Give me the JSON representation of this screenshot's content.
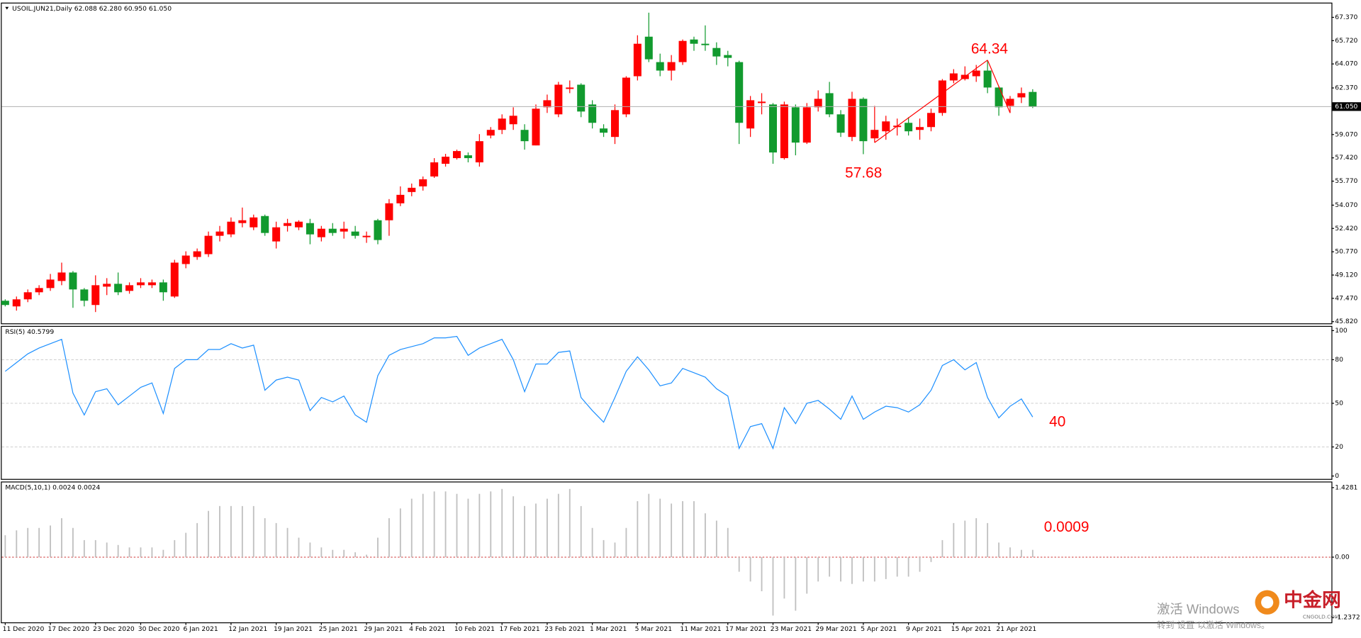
{
  "chart_data": [
    {
      "type": "candlestick",
      "title": "USOIL.JUN21,Daily  62.088 62.280 60.950 61.050",
      "up_color": "#ff0000",
      "down_color": "#119a2e",
      "categories": [
        "11 Dec 2020",
        null,
        null,
        null,
        "17 Dec 2020",
        null,
        null,
        null,
        "23 Dec 2020",
        null,
        null,
        null,
        "30 Dec 2020",
        null,
        null,
        null,
        "6 Jan 2021",
        null,
        null,
        null,
        "12 Jan 2021",
        null,
        null,
        null,
        "19 Jan 2021",
        null,
        null,
        null,
        "25 Jan 2021",
        null,
        null,
        null,
        "29 Jan 2021",
        null,
        null,
        null,
        "4 Feb 2021",
        null,
        null,
        null,
        "10 Feb 2021",
        null,
        null,
        null,
        "17 Feb 2021",
        null,
        null,
        null,
        "23 Feb 2021",
        null,
        null,
        null,
        "1 Mar 2021",
        null,
        null,
        null,
        "5 Mar 2021",
        null,
        null,
        null,
        "11 Mar 2021",
        null,
        null,
        null,
        "17 Mar 2021",
        null,
        null,
        null,
        "23 Mar 2021",
        null,
        null,
        null,
        "29 Mar 2021",
        null,
        null,
        null,
        "5 Apr 2021",
        null,
        null,
        null,
        "9 Apr 2021",
        null,
        null,
        null,
        "15 Apr 2021",
        null,
        null,
        null,
        "21 Apr 2021",
        null,
        null,
        null
      ],
      "open": [
        47.3,
        46.9,
        47.4,
        47.9,
        48.2,
        48.7,
        49.3,
        48.1,
        47.0,
        48.3,
        48.5,
        48.0,
        48.4,
        48.4,
        48.6,
        47.6,
        49.9,
        50.4,
        50.6,
        51.9,
        52.0,
        52.8,
        52.5,
        53.3,
        51.5,
        52.6,
        52.5,
        52.8,
        51.8,
        52.4,
        52.2,
        52.2,
        51.8,
        53.0,
        53.0,
        54.2,
        55.0,
        55.4,
        56.1,
        57.0,
        57.4,
        57.6,
        57.1,
        59.0,
        59.4,
        59.8,
        59.4,
        58.3,
        61.0,
        60.5,
        62.3,
        62.6,
        61.2,
        59.5,
        58.9,
        60.5,
        63.2,
        66.0,
        64.2,
        63.6,
        64.2,
        65.8,
        65.5,
        65.2,
        64.7,
        64.2,
        59.5,
        61.3,
        61.2,
        57.4,
        61.0,
        58.5,
        61.0,
        62.0,
        60.5,
        58.9,
        61.6,
        58.8,
        59.3,
        59.6,
        59.9,
        59.4,
        59.6,
        60.6,
        62.9,
        63.0,
        63.2,
        63.6,
        62.4,
        61.1,
        61.7,
        62.088
      ],
      "high": [
        47.4,
        47.6,
        48.1,
        48.4,
        49.2,
        50.0,
        49.4,
        48.2,
        49.1,
        48.9,
        49.3,
        48.6,
        48.9,
        48.8,
        48.8,
        50.2,
        50.8,
        51.0,
        52.2,
        52.6,
        53.2,
        53.9,
        53.4,
        53.4,
        52.9,
        53.1,
        53.0,
        53.1,
        52.6,
        52.8,
        52.9,
        52.6,
        52.2,
        53.1,
        54.5,
        55.4,
        55.6,
        56.1,
        57.4,
        57.7,
        58.0,
        57.8,
        59.1,
        59.6,
        60.5,
        61.0,
        59.8,
        61.2,
        61.9,
        62.8,
        62.9,
        62.7,
        61.5,
        59.8,
        61.2,
        63.2,
        66.1,
        67.7,
        64.8,
        64.7,
        65.8,
        66.0,
        66.8,
        65.6,
        65.0,
        64.3,
        61.8,
        62.0,
        61.3,
        61.4,
        61.2,
        61.3,
        62.2,
        62.8,
        60.8,
        62.1,
        61.7,
        61.1,
        60.4,
        60.2,
        60.3,
        60.2,
        60.9,
        63.0,
        63.7,
        63.9,
        64.0,
        64.34,
        62.5,
        61.8,
        62.4,
        62.28
      ],
      "low": [
        46.9,
        46.6,
        47.2,
        47.7,
        48.0,
        48.4,
        46.8,
        46.9,
        46.5,
        47.7,
        47.7,
        47.8,
        48.2,
        48.2,
        47.3,
        47.5,
        49.6,
        50.2,
        50.4,
        51.5,
        51.8,
        52.5,
        52.3,
        51.9,
        51.0,
        52.2,
        52.3,
        51.3,
        51.5,
        51.9,
        51.7,
        51.7,
        51.4,
        51.3,
        51.9,
        54.0,
        54.7,
        55.1,
        56.0,
        56.8,
        57.3,
        57.1,
        56.8,
        58.8,
        59.1,
        59.4,
        58.0,
        58.3,
        60.6,
        60.3,
        62.0,
        60.3,
        59.5,
        58.9,
        58.4,
        60.3,
        62.9,
        64.2,
        63.2,
        62.9,
        64.0,
        65.0,
        65.0,
        64.0,
        63.9,
        58.4,
        58.9,
        60.5,
        57.0,
        57.3,
        57.6,
        58.4,
        60.7,
        60.3,
        58.9,
        58.6,
        57.68,
        58.5,
        58.7,
        59.0,
        59.0,
        58.7,
        59.3,
        60.4,
        62.7,
        62.9,
        62.8,
        62.0,
        60.4,
        60.6,
        61.3,
        60.95
      ],
      "close": [
        47.0,
        47.4,
        47.9,
        48.2,
        48.8,
        49.3,
        48.1,
        47.3,
        48.4,
        48.5,
        47.9,
        48.4,
        48.6,
        48.6,
        47.9,
        50.0,
        50.5,
        50.8,
        51.9,
        52.2,
        52.9,
        53.0,
        53.2,
        52.1,
        52.5,
        52.8,
        52.9,
        52.0,
        52.4,
        52.1,
        52.4,
        51.9,
        51.9,
        51.6,
        54.2,
        54.8,
        55.3,
        55.9,
        57.1,
        57.5,
        57.9,
        57.4,
        58.6,
        59.4,
        60.2,
        60.4,
        58.6,
        60.9,
        61.5,
        62.6,
        62.4,
        60.7,
        59.9,
        59.2,
        60.8,
        63.1,
        65.5,
        64.4,
        63.6,
        64.2,
        65.7,
        65.5,
        65.4,
        64.6,
        64.5,
        59.9,
        61.5,
        61.4,
        57.8,
        61.2,
        58.5,
        61.0,
        61.6,
        60.5,
        59.2,
        61.6,
        58.6,
        59.4,
        60.0,
        59.7,
        59.3,
        59.6,
        60.6,
        62.9,
        63.4,
        63.3,
        63.6,
        62.4,
        61.0,
        61.6,
        62.0,
        61.05
      ],
      "ylim": [
        45.7,
        68.29
      ],
      "yticks": [
        {
          "value": 45.82,
          "label": "45.820"
        },
        {
          "value": 47.47,
          "label": "47.470"
        },
        {
          "value": 49.12,
          "label": "49.120"
        },
        {
          "value": 50.77,
          "label": "50.770"
        },
        {
          "value": 52.42,
          "label": "52.420"
        },
        {
          "value": 54.07,
          "label": "54.070"
        },
        {
          "value": 55.77,
          "label": "55.770"
        },
        {
          "value": 57.42,
          "label": "57.420"
        },
        {
          "value": 59.07,
          "label": "59.070"
        },
        {
          "value": 62.37,
          "label": "62.370"
        },
        {
          "value": 64.07,
          "label": "64.070"
        },
        {
          "value": 65.72,
          "label": "65.720"
        },
        {
          "value": 67.37,
          "label": "67.370"
        }
      ],
      "last_price": {
        "value": 61.05,
        "label": "61.050"
      },
      "trend_color": "#ff0000",
      "annotations": [
        "64.34",
        "57.68"
      ]
    },
    {
      "type": "line",
      "title": "RSI(5) 40.5799",
      "color": "#1e90ff",
      "values": [
        72,
        78,
        84,
        88,
        91,
        94,
        57,
        42,
        58,
        60,
        49,
        55,
        61,
        64,
        43,
        74,
        80,
        80,
        87,
        87,
        91,
        88,
        90,
        59,
        66,
        68,
        66,
        45,
        54,
        51,
        55,
        42,
        37,
        69,
        83,
        87,
        89,
        91,
        95,
        95,
        96,
        83,
        88,
        91,
        94,
        80,
        58,
        77,
        77,
        85,
        86,
        54,
        45,
        37,
        54,
        72,
        82,
        73,
        62,
        64,
        74,
        71,
        68,
        60,
        55,
        19,
        34,
        36,
        19,
        47,
        36,
        50,
        52,
        46,
        39,
        55,
        39,
        44,
        48,
        47,
        44,
        49,
        59,
        76,
        80,
        73,
        78,
        54,
        40,
        48,
        53,
        40.58
      ],
      "ylim": [
        -2,
        102
      ],
      "yticks": [
        0,
        20,
        50,
        80,
        100
      ],
      "grid": [
        20,
        50,
        80
      ],
      "annotations": [
        "40"
      ]
    },
    {
      "type": "bar",
      "title": "MACD(5,10,1) 0.0024 0.0024",
      "color": "#c0c0c0",
      "values": [
        0.45,
        0.55,
        0.6,
        0.6,
        0.65,
        0.8,
        0.6,
        0.35,
        0.35,
        0.3,
        0.25,
        0.2,
        0.2,
        0.2,
        0.15,
        0.35,
        0.5,
        0.7,
        0.95,
        1.05,
        1.05,
        1.05,
        1.05,
        0.8,
        0.7,
        0.6,
        0.4,
        0.3,
        0.2,
        0.15,
        0.15,
        0.1,
        0.05,
        0.4,
        0.8,
        1.0,
        1.2,
        1.3,
        1.35,
        1.35,
        1.3,
        1.2,
        1.3,
        1.35,
        1.4,
        1.25,
        1.05,
        1.1,
        1.2,
        1.3,
        1.4,
        1.05,
        0.6,
        0.35,
        0.3,
        0.6,
        1.15,
        1.3,
        1.2,
        1.1,
        1.15,
        1.15,
        0.9,
        0.75,
        0.6,
        -0.3,
        -0.5,
        -0.7,
        -1.2,
        -0.85,
        -1.1,
        -0.75,
        -0.5,
        -0.4,
        -0.5,
        -0.55,
        -0.5,
        -0.5,
        -0.45,
        -0.4,
        -0.4,
        -0.3,
        -0.1,
        0.35,
        0.7,
        0.75,
        0.8,
        0.7,
        0.3,
        0.2,
        0.15,
        0.15
      ],
      "ylim": [
        -1.339,
        1.535
      ],
      "yticks": [
        -1.2372,
        {
          "value": 0,
          "label": "0.00"
        },
        1.4281
      ],
      "zero_line_color": "#cc3333",
      "annotations": [
        "0.0009"
      ]
    }
  ],
  "overlay": {
    "watermark_line1": "激活 Windows",
    "watermark_line2": "转到“设置”以激活 Windows。",
    "logo": "中金网",
    "logo_sub": "CNGOLD.COM"
  }
}
